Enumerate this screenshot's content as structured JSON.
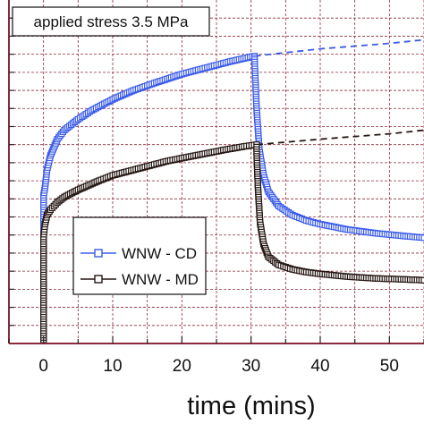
{
  "chart_data": {
    "type": "line",
    "title": "",
    "xlabel": "time (mins)",
    "ylabel": "",
    "xlim": [
      -5,
      55
    ],
    "ylim": [
      0,
      19
    ],
    "grid": true,
    "grid_color": "#8b2a3a",
    "frame_color": "#8b2a3a",
    "x_ticks": [
      0,
      10,
      20,
      30,
      40,
      50
    ],
    "x_tick_labels": [
      "0",
      "10",
      "20",
      "30",
      "40",
      "50"
    ],
    "annotation": "applied stress 3.5 MPa",
    "legend_position": "center-left",
    "series": [
      {
        "name": "WNW - CD",
        "color": "#3a5be8",
        "marker": "square-open",
        "points": [
          [
            0,
            0.2
          ],
          [
            0,
            8.2
          ],
          [
            0.2,
            8.6
          ],
          [
            0.5,
            9.6
          ],
          [
            1,
            10.4
          ],
          [
            2,
            11.3
          ],
          [
            3,
            11.8
          ],
          [
            5,
            12.4
          ],
          [
            7,
            12.9
          ],
          [
            10,
            13.5
          ],
          [
            13,
            14
          ],
          [
            16,
            14.4
          ],
          [
            20,
            14.9
          ],
          [
            24,
            15.3
          ],
          [
            27,
            15.6
          ],
          [
            30.5,
            15.9
          ],
          [
            30.5,
            15.7
          ],
          [
            30.8,
            13
          ],
          [
            31.2,
            10.7
          ],
          [
            31.8,
            9.3
          ],
          [
            32.5,
            8.4
          ],
          [
            34,
            7.6
          ],
          [
            36,
            7.1
          ],
          [
            38,
            6.8
          ],
          [
            40,
            6.6
          ],
          [
            44,
            6.3
          ],
          [
            48,
            6.1
          ],
          [
            52,
            5.95
          ],
          [
            55,
            5.85
          ]
        ],
        "recovery_extrapolation": [
          [
            30.5,
            15.9
          ],
          [
            40,
            16.3
          ],
          [
            50,
            16.6
          ],
          [
            55,
            16.8
          ]
        ]
      },
      {
        "name": "WNW - MD",
        "color": "#241612",
        "marker": "square-open",
        "points": [
          [
            0,
            0.2
          ],
          [
            0,
            5.9
          ],
          [
            0.2,
            6.6
          ],
          [
            0.5,
            7.1
          ],
          [
            1,
            7.4
          ],
          [
            2,
            7.8
          ],
          [
            3,
            8.1
          ],
          [
            5,
            8.5
          ],
          [
            8,
            9
          ],
          [
            10,
            9.3
          ],
          [
            14,
            9.7
          ],
          [
            18,
            10.1
          ],
          [
            22,
            10.4
          ],
          [
            26,
            10.7
          ],
          [
            29,
            10.9
          ],
          [
            30.8,
            11.0
          ],
          [
            30.8,
            10.6
          ],
          [
            31,
            8.6
          ],
          [
            31.3,
            6.7
          ],
          [
            31.8,
            5.5
          ],
          [
            32.5,
            4.8
          ],
          [
            34,
            4.35
          ],
          [
            36,
            4.1
          ],
          [
            38,
            3.95
          ],
          [
            40,
            3.85
          ],
          [
            44,
            3.7
          ],
          [
            48,
            3.6
          ],
          [
            52,
            3.55
          ],
          [
            55,
            3.5
          ]
        ],
        "recovery_extrapolation": [
          [
            30.8,
            11.0
          ],
          [
            40,
            11.3
          ],
          [
            50,
            11.6
          ],
          [
            55,
            11.8
          ]
        ]
      }
    ]
  }
}
